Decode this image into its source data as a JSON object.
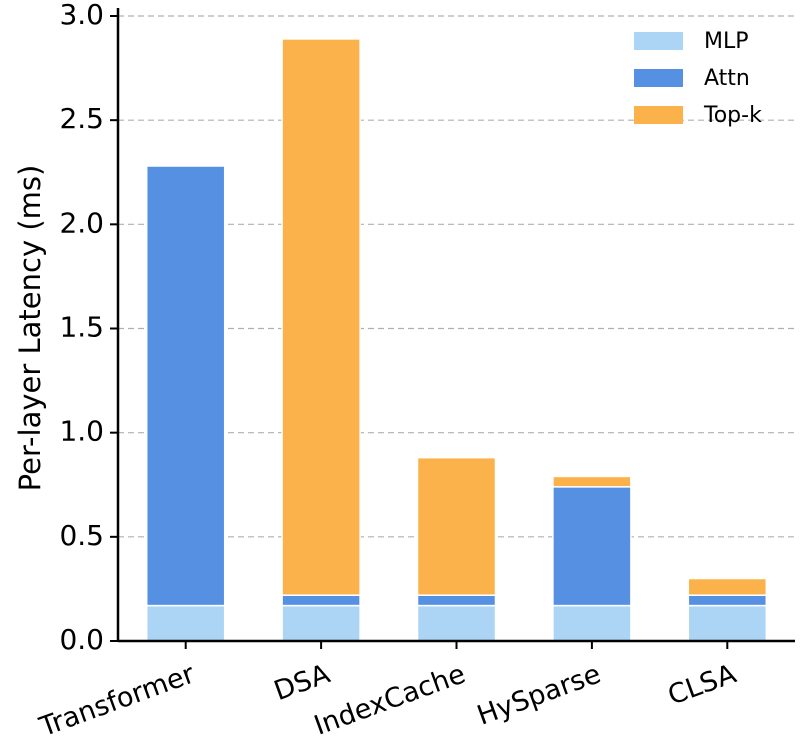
{
  "chart_data": {
    "type": "stacked-bar",
    "y_label": "Per-layer Latency (ms)",
    "categories": [
      "Transformer",
      "DSA",
      "IndexCache",
      "HySparse",
      "CLSA"
    ],
    "series": [
      {
        "name": "MLP",
        "color": "#acd5f5",
        "values": [
          0.17,
          0.17,
          0.17,
          0.17,
          0.17
        ]
      },
      {
        "name": "Attn",
        "color": "#5690e3",
        "values": [
          2.11,
          0.05,
          0.05,
          0.57,
          0.05
        ]
      },
      {
        "name": "Top-k",
        "color": "#fbb24b",
        "values": [
          0,
          2.67,
          0.66,
          0.05,
          0.08
        ]
      }
    ],
    "ylim": [
      0,
      3.0
    ],
    "yticks": [
      {
        "value": 0,
        "label": "0.0"
      },
      {
        "value": 0.5,
        "label": "0.5"
      },
      {
        "value": 1,
        "label": "1.0"
      },
      {
        "value": 1.5,
        "label": "1.5"
      },
      {
        "value": 2,
        "label": "2.0"
      },
      {
        "value": 2.5,
        "label": "2.5"
      },
      {
        "value": 3,
        "label": "3.0"
      }
    ],
    "grid": true,
    "legend": "upper right"
  }
}
